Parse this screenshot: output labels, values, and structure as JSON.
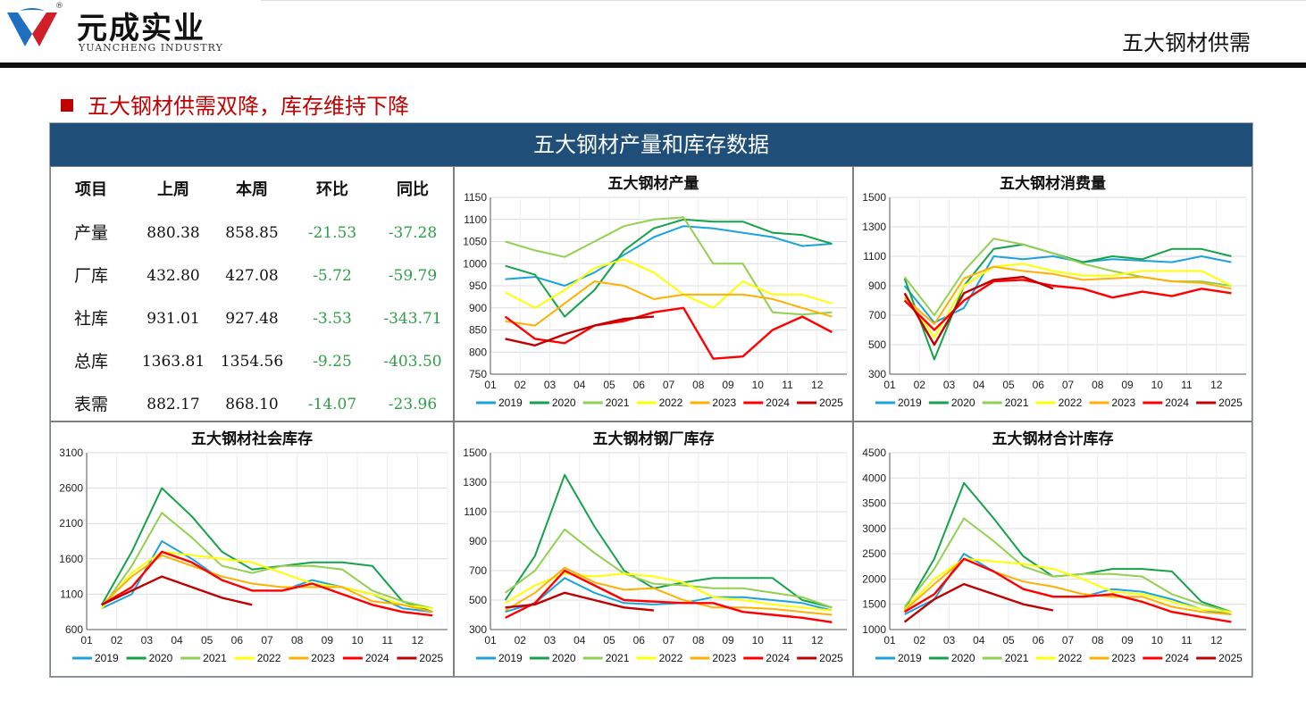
{
  "logo": {
    "cn": "元成实业",
    "en": "YUANCHENG INDUSTRY",
    "reg": "®"
  },
  "header": {
    "title": "五大钢材供需"
  },
  "section": {
    "title": "五大钢材供需双降，库存维持下降"
  },
  "panel": {
    "title": "五大钢材产量和库存数据"
  },
  "colors": {
    "2019": "#1ca3dc",
    "2020": "#15a24a",
    "2021": "#92d050",
    "2022": "#ffff00",
    "2023": "#ffb000",
    "2024": "#ff0000",
    "2025": "#c00000",
    "header": "#1f4e79",
    "accent": "#c00000",
    "negative": "#2e9e48"
  },
  "table": {
    "headers": [
      "项目",
      "上周",
      "本周",
      "环比",
      "同比"
    ],
    "rows": [
      [
        "产量",
        "880.38",
        "858.85",
        "-21.53",
        "-37.28"
      ],
      [
        "厂库",
        "432.80",
        "427.08",
        "-5.72",
        "-59.79"
      ],
      [
        "社库",
        "931.01",
        "927.48",
        "-3.53",
        "-343.71"
      ],
      [
        "总库",
        "1363.81",
        "1354.56",
        "-9.25",
        "-403.50"
      ],
      [
        "表需",
        "882.17",
        "868.10",
        "-14.07",
        "-23.96"
      ]
    ]
  },
  "chart_data": [
    {
      "type": "line",
      "title": "五大钢材产量",
      "ylim": [
        750,
        1150
      ],
      "yticks": [
        750,
        800,
        850,
        900,
        950,
        1000,
        1050,
        1100,
        1150
      ],
      "xticks": [
        "01",
        "02",
        "03",
        "04",
        "05",
        "06",
        "07",
        "08",
        "09",
        "10",
        "11",
        "12"
      ],
      "series": [
        {
          "name": "2019",
          "values": [
            965,
            970,
            950,
            980,
            1020,
            1060,
            1085,
            1080,
            1070,
            1060,
            1040,
            1045
          ]
        },
        {
          "name": "2020",
          "values": [
            995,
            975,
            880,
            940,
            1030,
            1080,
            1100,
            1095,
            1095,
            1070,
            1065,
            1045
          ]
        },
        {
          "name": "2021",
          "values": [
            1050,
            1030,
            1015,
            1050,
            1085,
            1100,
            1105,
            1000,
            1000,
            890,
            885,
            890
          ]
        },
        {
          "name": "2022",
          "values": [
            935,
            900,
            940,
            990,
            1010,
            980,
            930,
            900,
            960,
            930,
            930,
            910
          ]
        },
        {
          "name": "2023",
          "values": [
            870,
            860,
            910,
            960,
            950,
            920,
            930,
            930,
            930,
            920,
            900,
            880
          ]
        },
        {
          "name": "2024",
          "values": [
            880,
            830,
            820,
            860,
            870,
            890,
            900,
            785,
            790,
            850,
            880,
            845
          ]
        },
        {
          "name": "2025",
          "values": [
            830,
            815,
            840,
            860,
            875,
            880
          ]
        }
      ]
    },
    {
      "type": "line",
      "title": "五大钢材消费量",
      "ylim": [
        300,
        1500
      ],
      "yticks": [
        300,
        500,
        700,
        900,
        1100,
        1300,
        1500
      ],
      "xticks": [
        "01",
        "02",
        "03",
        "04",
        "05",
        "06",
        "07",
        "08",
        "09",
        "10",
        "11",
        "12"
      ],
      "series": [
        {
          "name": "2019",
          "values": [
            900,
            650,
            750,
            1100,
            1080,
            1100,
            1060,
            1080,
            1070,
            1060,
            1100,
            1060
          ]
        },
        {
          "name": "2020",
          "values": [
            950,
            400,
            900,
            1150,
            1180,
            1120,
            1060,
            1100,
            1080,
            1150,
            1150,
            1100
          ]
        },
        {
          "name": "2021",
          "values": [
            960,
            700,
            1000,
            1220,
            1180,
            1120,
            1050,
            1000,
            960,
            930,
            930,
            900
          ]
        },
        {
          "name": "2022",
          "values": [
            850,
            550,
            900,
            1030,
            1050,
            1000,
            970,
            970,
            1000,
            1000,
            1000,
            900
          ]
        },
        {
          "name": "2023",
          "values": [
            820,
            640,
            950,
            1030,
            1000,
            980,
            940,
            950,
            960,
            930,
            920,
            880
          ]
        },
        {
          "name": "2024",
          "values": [
            800,
            600,
            800,
            930,
            940,
            900,
            880,
            820,
            860,
            830,
            880,
            850
          ]
        },
        {
          "name": "2025",
          "values": [
            850,
            500,
            850,
            940,
            960,
            880
          ]
        }
      ]
    },
    {
      "type": "line",
      "title": "五大钢材社会库存",
      "ylim": [
        600,
        3100
      ],
      "yticks": [
        600,
        1100,
        1600,
        2100,
        2600,
        3100
      ],
      "xticks": [
        "01",
        "02",
        "03",
        "04",
        "05",
        "06",
        "07",
        "08",
        "09",
        "10",
        "11",
        "12"
      ],
      "series": [
        {
          "name": "2019",
          "values": [
            900,
            1100,
            1850,
            1600,
            1300,
            1150,
            1150,
            1300,
            1200,
            1100,
            900,
            850
          ]
        },
        {
          "name": "2020",
          "values": [
            950,
            1700,
            2600,
            2200,
            1700,
            1450,
            1500,
            1550,
            1550,
            1500,
            1000,
            850
          ]
        },
        {
          "name": "2021",
          "values": [
            900,
            1500,
            2250,
            1900,
            1500,
            1400,
            1500,
            1500,
            1450,
            1150,
            1000,
            900
          ]
        },
        {
          "name": "2022",
          "values": [
            900,
            1400,
            1700,
            1650,
            1600,
            1550,
            1400,
            1250,
            1200,
            1100,
            950,
            900
          ]
        },
        {
          "name": "2023",
          "values": [
            950,
            1350,
            1650,
            1500,
            1350,
            1250,
            1200,
            1200,
            1200,
            1000,
            950,
            850
          ]
        },
        {
          "name": "2024",
          "values": [
            950,
            1200,
            1700,
            1550,
            1300,
            1150,
            1150,
            1250,
            1100,
            950,
            850,
            800
          ]
        },
        {
          "name": "2025",
          "values": [
            950,
            1150,
            1350,
            1200,
            1050,
            950
          ]
        }
      ]
    },
    {
      "type": "line",
      "title": "五大钢材钢厂库存",
      "ylim": [
        300,
        1500
      ],
      "yticks": [
        300,
        500,
        700,
        900,
        1100,
        1300,
        1500
      ],
      "xticks": [
        "01",
        "02",
        "03",
        "04",
        "05",
        "06",
        "07",
        "08",
        "09",
        "10",
        "11",
        "12"
      ],
      "series": [
        {
          "name": "2019",
          "values": [
            420,
            480,
            650,
            550,
            480,
            470,
            480,
            520,
            520,
            500,
            480,
            430
          ]
        },
        {
          "name": "2020",
          "values": [
            500,
            800,
            1350,
            1000,
            700,
            580,
            620,
            650,
            650,
            650,
            500,
            450
          ]
        },
        {
          "name": "2021",
          "values": [
            550,
            700,
            980,
            820,
            680,
            610,
            600,
            580,
            580,
            550,
            520,
            450
          ]
        },
        {
          "name": "2022",
          "values": [
            480,
            600,
            680,
            660,
            680,
            660,
            620,
            520,
            500,
            470,
            450,
            430
          ]
        },
        {
          "name": "2023",
          "values": [
            430,
            550,
            720,
            620,
            570,
            580,
            500,
            450,
            450,
            440,
            420,
            400
          ]
        },
        {
          "name": "2024",
          "values": [
            380,
            480,
            700,
            600,
            500,
            490,
            480,
            480,
            420,
            400,
            380,
            350
          ]
        },
        {
          "name": "2025",
          "values": [
            450,
            470,
            550,
            500,
            450,
            430
          ]
        }
      ]
    },
    {
      "type": "line",
      "title": "五大钢材合计库存",
      "ylim": [
        1000,
        4500
      ],
      "yticks": [
        1000,
        1500,
        2000,
        2500,
        3000,
        3500,
        4000,
        4500
      ],
      "xticks": [
        "01",
        "02",
        "03",
        "04",
        "05",
        "06",
        "07",
        "08",
        "09",
        "10",
        "11",
        "12"
      ],
      "series": [
        {
          "name": "2019",
          "values": [
            1300,
            1600,
            2500,
            2150,
            1800,
            1650,
            1650,
            1800,
            1750,
            1600,
            1400,
            1300
          ]
        },
        {
          "name": "2020",
          "values": [
            1400,
            2400,
            3900,
            3200,
            2450,
            2050,
            2100,
            2200,
            2200,
            2150,
            1550,
            1350
          ]
        },
        {
          "name": "2021",
          "values": [
            1450,
            2200,
            3200,
            2750,
            2250,
            2050,
            2100,
            2100,
            2050,
            1700,
            1500,
            1350
          ]
        },
        {
          "name": "2022",
          "values": [
            1400,
            2000,
            2400,
            2350,
            2300,
            2200,
            2000,
            1750,
            1700,
            1550,
            1400,
            1350
          ]
        },
        {
          "name": "2023",
          "values": [
            1380,
            1900,
            2400,
            2150,
            1950,
            1850,
            1700,
            1650,
            1650,
            1450,
            1350,
            1300
          ]
        },
        {
          "name": "2024",
          "values": [
            1350,
            1700,
            2400,
            2150,
            1800,
            1650,
            1650,
            1700,
            1550,
            1350,
            1250,
            1150
          ]
        },
        {
          "name": "2025",
          "values": [
            1150,
            1600,
            1900,
            1700,
            1500,
            1380
          ]
        }
      ]
    }
  ]
}
